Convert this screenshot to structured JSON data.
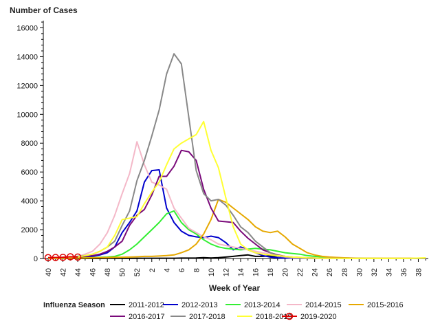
{
  "chart_data": {
    "type": "line",
    "ylabel": "Number of Cases",
    "xlabel": "Week of Year",
    "ylim": [
      0,
      16500
    ],
    "yticks": [
      0,
      2000,
      4000,
      6000,
      8000,
      10000,
      12000,
      14000,
      16000
    ],
    "tick_labels": [
      "40",
      "42",
      "44",
      "46",
      "48",
      "50",
      "52",
      "2",
      "4",
      "6",
      "8",
      "10",
      "12",
      "14",
      "16",
      "18",
      "20",
      "22",
      "24",
      "26",
      "28",
      "30",
      "32",
      "34",
      "36",
      "38"
    ],
    "grid": false,
    "legend": {
      "title": "Influenza Season",
      "placement": "bottom"
    },
    "series": [
      {
        "name": "2011-2012",
        "color": "#000000",
        "marker": false,
        "values": [
          0,
          0,
          0,
          0,
          0,
          0,
          0,
          0,
          10,
          10,
          10,
          10,
          10,
          20,
          20,
          20,
          20,
          20,
          30,
          30,
          40,
          60,
          40,
          60,
          100,
          150,
          200,
          250,
          150,
          150,
          180,
          170,
          120,
          80,
          50,
          40,
          30,
          20,
          10,
          10,
          10,
          5,
          5,
          0,
          0,
          0,
          0,
          0,
          0,
          0,
          0,
          0
        ]
      },
      {
        "name": "2012-2013",
        "color": "#0000cc",
        "marker": false,
        "values": [
          20,
          30,
          40,
          60,
          80,
          100,
          150,
          250,
          400,
          800,
          1800,
          2500,
          3300,
          5300,
          6100,
          6150,
          3500,
          2500,
          1900,
          1600,
          1500,
          1450,
          1550,
          1450,
          1100,
          600,
          800,
          600,
          400,
          200,
          100,
          50,
          30,
          20,
          10,
          10,
          5,
          5,
          0,
          0,
          0,
          0,
          0,
          0,
          0,
          0,
          0,
          0,
          0,
          0,
          0,
          0
        ]
      },
      {
        "name": "2013-2014",
        "color": "#33ee33",
        "marker": false,
        "values": [
          10,
          10,
          20,
          30,
          40,
          50,
          60,
          80,
          100,
          150,
          300,
          600,
          1000,
          1500,
          2000,
          2500,
          3100,
          3300,
          2500,
          2000,
          1700,
          1300,
          1000,
          800,
          700,
          650,
          600,
          650,
          700,
          650,
          600,
          500,
          400,
          350,
          300,
          200,
          150,
          100,
          80,
          50,
          30,
          20,
          10,
          5,
          5,
          0,
          0,
          0,
          0,
          0,
          0,
          0
        ]
      },
      {
        "name": "2014-2015",
        "color": "#f4b8c8",
        "marker": false,
        "values": [
          10,
          20,
          40,
          80,
          150,
          300,
          500,
          1000,
          1800,
          3000,
          4500,
          5900,
          8100,
          6500,
          5300,
          5100,
          4800,
          3500,
          2800,
          2100,
          1800,
          1500,
          1300,
          1000,
          900,
          800,
          700,
          600,
          500,
          400,
          300,
          200,
          100,
          50,
          30,
          20,
          10,
          0,
          0,
          0,
          0,
          0,
          0,
          0,
          0,
          0,
          0,
          0,
          0,
          0,
          0,
          0
        ]
      },
      {
        "name": "2015-2016",
        "color": "#e6a800",
        "marker": false,
        "values": [
          0,
          0,
          10,
          20,
          30,
          40,
          50,
          60,
          70,
          80,
          90,
          100,
          120,
          150,
          150,
          170,
          200,
          250,
          400,
          600,
          1000,
          1700,
          2700,
          4100,
          3900,
          3500,
          3100,
          2700,
          2200,
          1900,
          1800,
          1900,
          1500,
          1000,
          700,
          400,
          250,
          150,
          100,
          70,
          50,
          30,
          20,
          20,
          20,
          20,
          20,
          20,
          20,
          20,
          20,
          20
        ]
      },
      {
        "name": "2016-2017",
        "color": "#7a0a7a",
        "marker": false,
        "values": [
          30,
          40,
          60,
          80,
          100,
          150,
          200,
          300,
          500,
          800,
          1200,
          2300,
          3000,
          3400,
          4400,
          5700,
          5700,
          6400,
          7500,
          7400,
          6800,
          4800,
          3500,
          2600,
          2550,
          2500,
          1900,
          1400,
          1000,
          600,
          400,
          250,
          150,
          100,
          70,
          50,
          30,
          20,
          10,
          10,
          5,
          5,
          0,
          0,
          0,
          0,
          0,
          0,
          0,
          0,
          0,
          0
        ]
      },
      {
        "name": "2017-2018",
        "color": "#888888",
        "marker": false,
        "values": [
          50,
          60,
          80,
          100,
          150,
          200,
          300,
          500,
          800,
          1200,
          2300,
          3300,
          5400,
          6800,
          8500,
          10300,
          12800,
          14200,
          13500,
          9800,
          6100,
          4500,
          4000,
          4100,
          3700,
          3000,
          2200,
          1800,
          1200,
          800,
          400,
          200,
          120,
          80,
          50,
          30,
          20,
          10,
          10,
          5,
          5,
          0,
          0,
          0,
          0,
          0,
          0,
          0,
          0,
          0,
          0,
          0
        ]
      },
      {
        "name": "2018-2019",
        "color": "#ffff33",
        "marker": false,
        "values": [
          30,
          40,
          60,
          80,
          100,
          200,
          300,
          500,
          800,
          1600,
          2700,
          2800,
          2900,
          3800,
          4600,
          5300,
          6500,
          7600,
          8000,
          8300,
          8600,
          9500,
          7500,
          6300,
          4200,
          2200,
          1000,
          600,
          400,
          300,
          250,
          200,
          150,
          100,
          80,
          50,
          30,
          20,
          10,
          10,
          10,
          5,
          5,
          5,
          5,
          5,
          5,
          5,
          5,
          10,
          30,
          50
        ]
      },
      {
        "name": "2019-2020",
        "color": "#dd0000",
        "marker": true,
        "values": [
          60,
          70,
          80,
          120,
          100
        ]
      }
    ]
  }
}
